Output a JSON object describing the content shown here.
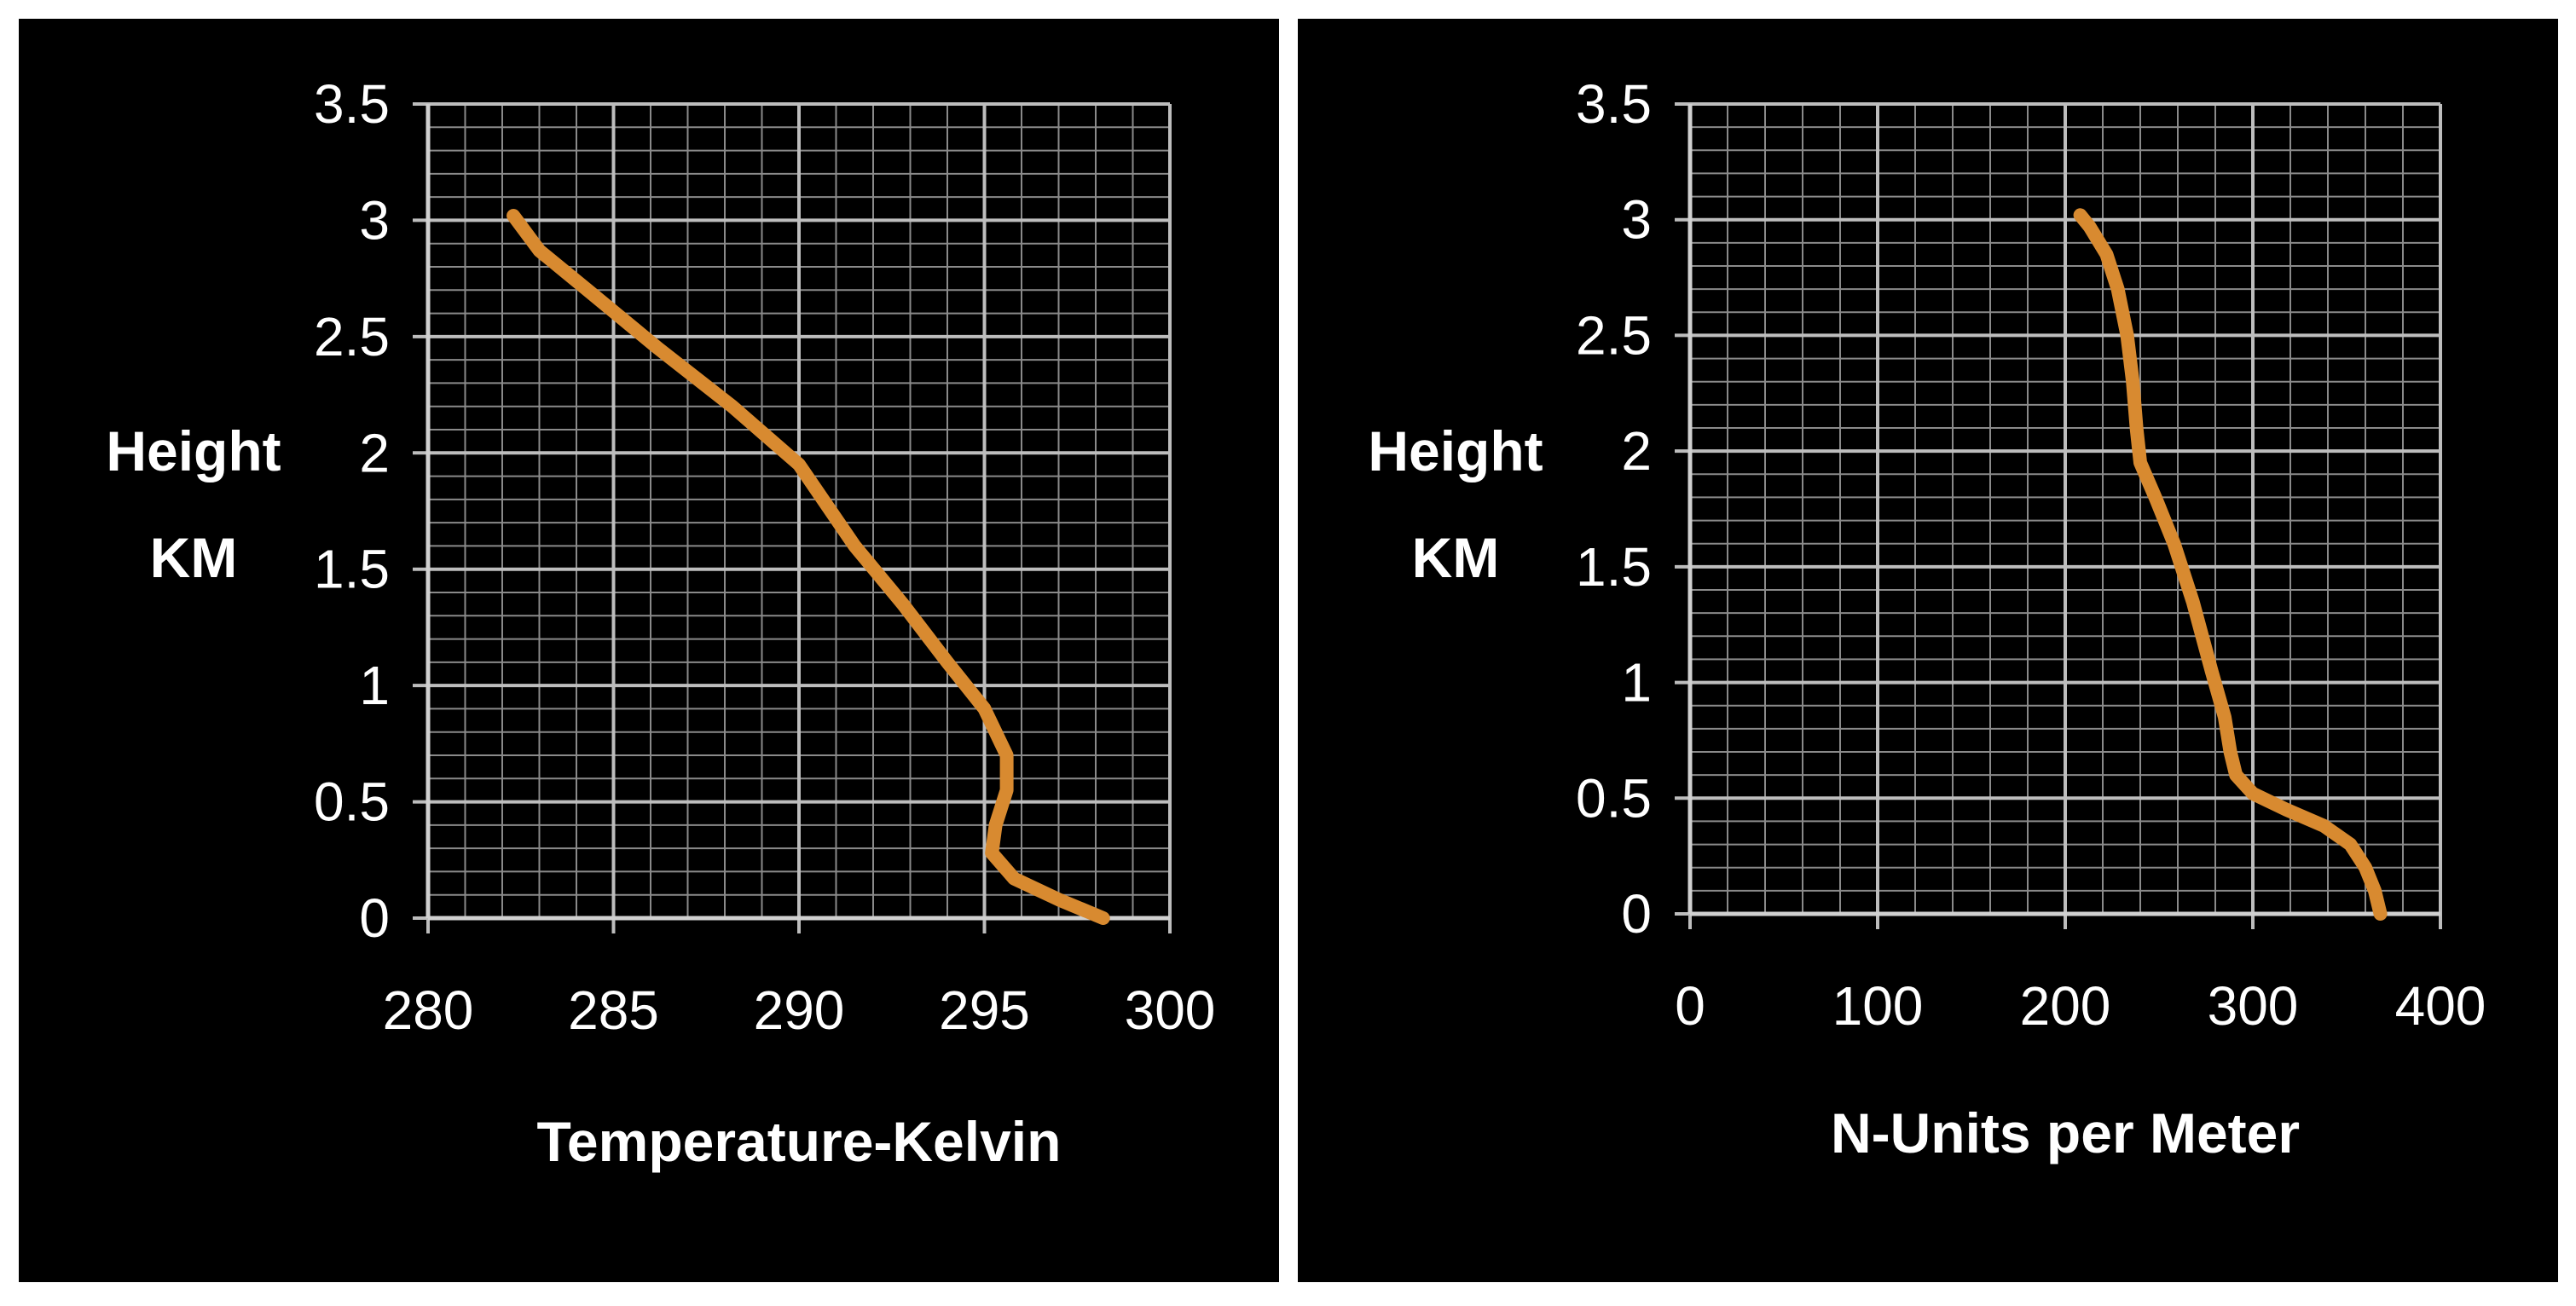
{
  "colors": {
    "background": "#000000",
    "grid": "#bdbdbd",
    "line": "#d88a30",
    "text": "#ffffff"
  },
  "chart_data": [
    {
      "type": "line",
      "title": "",
      "xlabel": "Temperature-Kelvin",
      "ylabel": [
        "Height",
        "KM"
      ],
      "xlim": [
        280,
        300
      ],
      "ylim": [
        0,
        3.5
      ],
      "xticks": [
        "280",
        "285",
        "290",
        "295",
        "300"
      ],
      "yticks": [
        "0",
        "0.5",
        "1",
        "1.5",
        "2",
        "2.5",
        "3",
        "3.5"
      ],
      "grid": true,
      "series": [
        {
          "x": [
            298.2,
            297,
            295.8,
            295.2,
            295.3,
            295.6,
            295.6,
            295.0,
            294.0,
            292.8,
            291.5,
            290.0,
            288.2,
            286.2,
            284.3,
            283.0,
            282.3
          ],
          "y": [
            0.0,
            0.08,
            0.17,
            0.28,
            0.4,
            0.55,
            0.7,
            0.9,
            1.1,
            1.35,
            1.6,
            1.95,
            2.2,
            2.45,
            2.7,
            2.87,
            3.02
          ]
        }
      ]
    },
    {
      "type": "line",
      "title": "",
      "xlabel": "N-Units per Meter",
      "ylabel": [
        "Height",
        "KM"
      ],
      "xlim": [
        0,
        400
      ],
      "ylim": [
        0,
        3.5
      ],
      "xticks": [
        "0",
        "100",
        "200",
        "300",
        "400"
      ],
      "yticks": [
        "0",
        "0.5",
        "1",
        "1.5",
        "2",
        "2.5",
        "3",
        "3.5"
      ],
      "grid": true,
      "series": [
        {
          "x": [
            368,
            365,
            360,
            352,
            338,
            318,
            300,
            291,
            288,
            285,
            278,
            268,
            258,
            248,
            240,
            238,
            236,
            233,
            228,
            222,
            213,
            208
          ],
          "y": [
            0.0,
            0.1,
            0.2,
            0.3,
            0.38,
            0.45,
            0.52,
            0.6,
            0.7,
            0.85,
            1.05,
            1.35,
            1.6,
            1.8,
            1.95,
            2.1,
            2.3,
            2.5,
            2.7,
            2.85,
            2.97,
            3.02
          ]
        }
      ]
    }
  ]
}
